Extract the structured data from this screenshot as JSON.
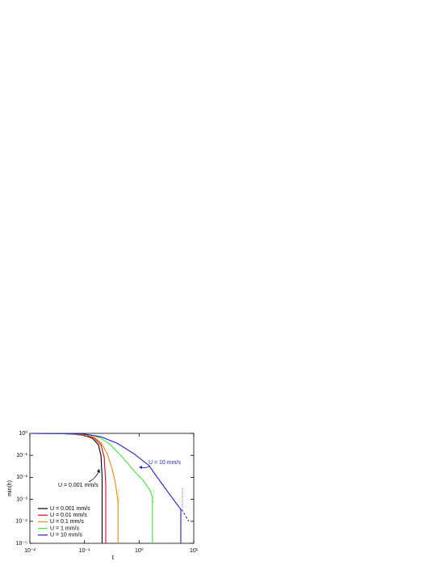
{
  "chart_data": {
    "type": "line",
    "x_label": "t",
    "y_label": "min(h)",
    "xscale": "log",
    "yscale": "log",
    "xlim": [
      0.01,
      10
    ],
    "ylim": [
      1e-05,
      1
    ],
    "xticks": [
      {
        "value": 0.01,
        "label": "10⁻²"
      },
      {
        "value": 0.1,
        "label": "10⁻¹"
      },
      {
        "value": 1,
        "label": "10⁰"
      },
      {
        "value": 10,
        "label": "10¹"
      }
    ],
    "yticks": [
      {
        "value": 1e-05,
        "label": "10⁻⁵"
      },
      {
        "value": 0.0001,
        "label": "10⁻⁴"
      },
      {
        "value": 0.001,
        "label": "10⁻³"
      },
      {
        "value": 0.01,
        "label": "10⁻²"
      },
      {
        "value": 0.1,
        "label": "10⁻¹"
      },
      {
        "value": 1,
        "label": "10⁰"
      }
    ],
    "annotations": [
      "U = 0.001 mm/s",
      "U = 10 mm/s"
    ],
    "series": [
      {
        "name": "U = 0.001 mm/s",
        "color": "#000000",
        "x": [
          0.01,
          0.03,
          0.06,
          0.1,
          0.14,
          0.18,
          0.2,
          0.21,
          0.21
        ],
        "values": [
          1,
          0.98,
          0.93,
          0.8,
          0.6,
          0.3,
          0.1,
          0.01,
          1e-05
        ]
      },
      {
        "name": "U = 0.01 mm/s",
        "color": "#e8002a",
        "x": [
          0.01,
          0.03,
          0.06,
          0.1,
          0.15,
          0.2,
          0.23,
          0.245,
          0.245
        ],
        "values": [
          1,
          0.98,
          0.94,
          0.82,
          0.62,
          0.3,
          0.08,
          0.005,
          1e-05
        ]
      },
      {
        "name": "U = 0.1 mm/s",
        "color": "#f08a00",
        "x": [
          0.01,
          0.03,
          0.06,
          0.1,
          0.15,
          0.2,
          0.26,
          0.32,
          0.37,
          0.41,
          0.41
        ],
        "values": [
          1,
          0.98,
          0.95,
          0.86,
          0.66,
          0.38,
          0.12,
          0.025,
          0.005,
          0.0008,
          1e-05
        ]
      },
      {
        "name": "U = 1 mm/s",
        "color": "#3ee83e",
        "x": [
          0.01,
          0.03,
          0.06,
          0.1,
          0.15,
          0.2,
          0.3,
          0.5,
          0.8,
          1.2,
          1.6,
          1.75,
          1.75
        ],
        "values": [
          1,
          0.98,
          0.96,
          0.9,
          0.78,
          0.6,
          0.3,
          0.08,
          0.02,
          0.007,
          0.0025,
          0.0012,
          1e-05
        ]
      },
      {
        "name": "U = 10 mm/s",
        "color": "#1f1fd0",
        "x": [
          0.01,
          0.03,
          0.06,
          0.1,
          0.2,
          0.4,
          0.8,
          1.5,
          2.6,
          4,
          5.8,
          5.8
        ],
        "values": [
          1,
          0.99,
          0.97,
          0.92,
          0.7,
          0.35,
          0.12,
          0.035,
          0.0052,
          0.0012,
          0.00035,
          1e-05
        ]
      }
    ]
  }
}
